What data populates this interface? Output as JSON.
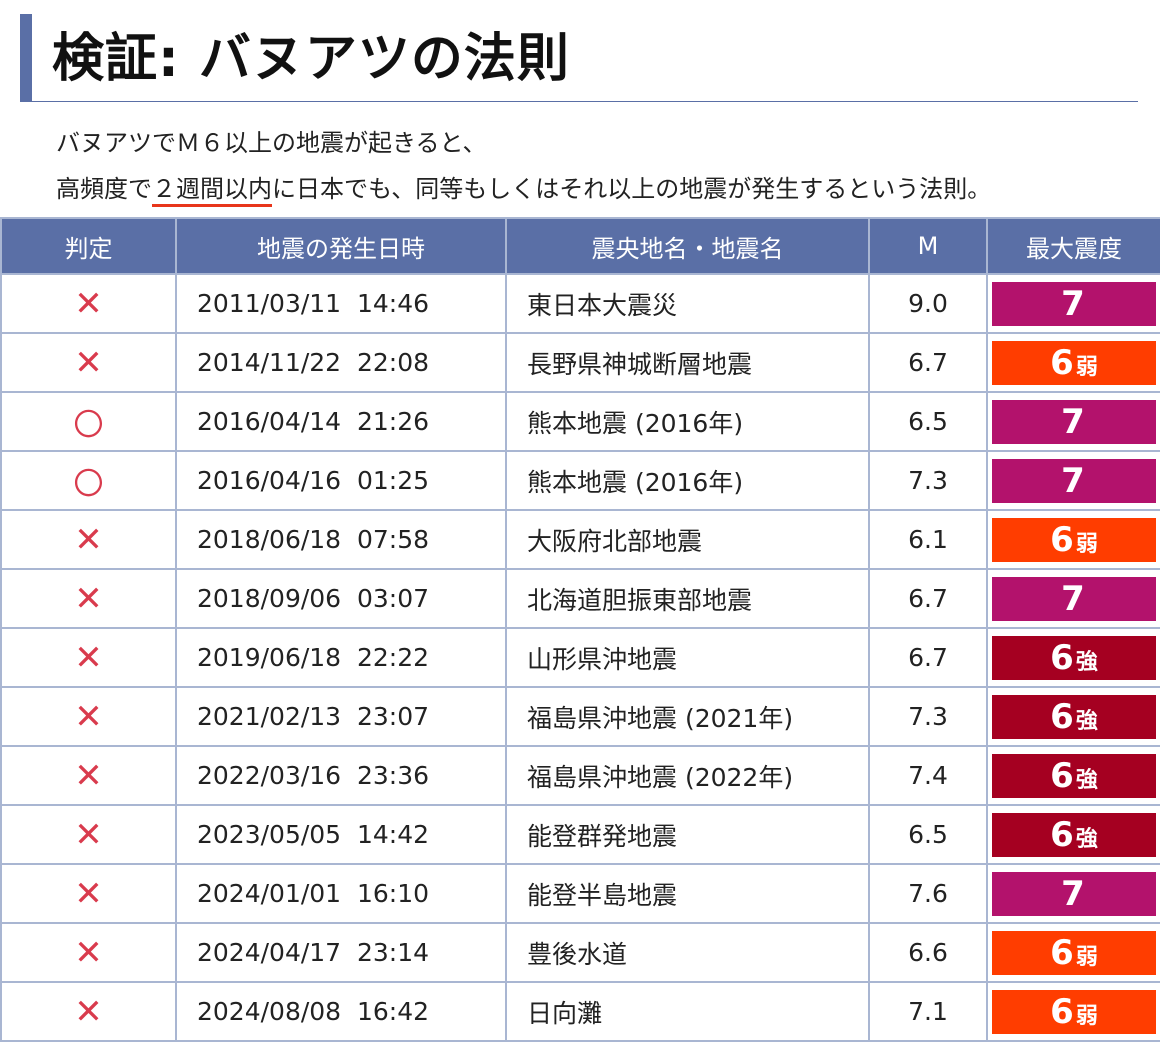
{
  "header": {
    "title": "検証: バヌアツの法則",
    "desc_line1": "バヌアツでＭ６以上の地震が起きると、",
    "desc_line2_pre": "高頻度で",
    "desc_line2_underlined": "２週間以内",
    "desc_line2_post": "に日本でも、同等もしくはそれ以上の地震が発生するという法則。"
  },
  "table": {
    "headers": [
      "判定",
      "地震の発生日時",
      "震央地名・地震名",
      "M",
      "最大震度"
    ],
    "rows": [
      {
        "judge": "✕",
        "datetime": "2011/03/11  14:46",
        "name": "東日本大震災",
        "magnitude": "9.0",
        "intensity_num": "7",
        "intensity_suffix": "",
        "color": "#b3126c"
      },
      {
        "judge": "✕",
        "datetime": "2014/11/22  22:08",
        "name": "長野県神城断層地震",
        "magnitude": "6.7",
        "intensity_num": "6",
        "intensity_suffix": "弱",
        "color": "#ff3d00"
      },
      {
        "judge": "〇",
        "datetime": "2016/04/14  21:26",
        "name": "熊本地震 (2016年)",
        "magnitude": "6.5",
        "intensity_num": "7",
        "intensity_suffix": "",
        "color": "#b3126c"
      },
      {
        "judge": "〇",
        "datetime": "2016/04/16  01:25",
        "name": "熊本地震 (2016年)",
        "magnitude": "7.3",
        "intensity_num": "7",
        "intensity_suffix": "",
        "color": "#b3126c"
      },
      {
        "judge": "✕",
        "datetime": "2018/06/18  07:58",
        "name": "大阪府北部地震",
        "magnitude": "6.1",
        "intensity_num": "6",
        "intensity_suffix": "弱",
        "color": "#ff3d00"
      },
      {
        "judge": "✕",
        "datetime": "2018/09/06  03:07",
        "name": "北海道胆振東部地震",
        "magnitude": "6.7",
        "intensity_num": "7",
        "intensity_suffix": "",
        "color": "#b3126c"
      },
      {
        "judge": "✕",
        "datetime": "2019/06/18  22:22",
        "name": "山形県沖地震",
        "magnitude": "6.7",
        "intensity_num": "6",
        "intensity_suffix": "強",
        "color": "#a50021"
      },
      {
        "judge": "✕",
        "datetime": "2021/02/13  23:07",
        "name": "福島県沖地震 (2021年)",
        "magnitude": "7.3",
        "intensity_num": "6",
        "intensity_suffix": "強",
        "color": "#a50021"
      },
      {
        "judge": "✕",
        "datetime": "2022/03/16  23:36",
        "name": "福島県沖地震 (2022年)",
        "magnitude": "7.4",
        "intensity_num": "6",
        "intensity_suffix": "強",
        "color": "#a50021"
      },
      {
        "judge": "✕",
        "datetime": "2023/05/05  14:42",
        "name": "能登群発地震",
        "magnitude": "6.5",
        "intensity_num": "6",
        "intensity_suffix": "強",
        "color": "#a50021"
      },
      {
        "judge": "✕",
        "datetime": "2024/01/01  16:10",
        "name": "能登半島地震",
        "magnitude": "7.6",
        "intensity_num": "7",
        "intensity_suffix": "",
        "color": "#b3126c"
      },
      {
        "judge": "✕",
        "datetime": "2024/04/17  23:14",
        "name": "豊後水道",
        "magnitude": "6.6",
        "intensity_num": "6",
        "intensity_suffix": "弱",
        "color": "#ff3d00"
      },
      {
        "judge": "✕",
        "datetime": "2024/08/08  16:42",
        "name": "日向灘",
        "magnitude": "7.1",
        "intensity_num": "6",
        "intensity_suffix": "弱",
        "color": "#ff3d00"
      }
    ]
  },
  "colors": {
    "header_bg": "#5a6fa6",
    "grid": "#a9b6d2",
    "judge_mark": "#d93b4d",
    "underline": "#e8351b"
  }
}
